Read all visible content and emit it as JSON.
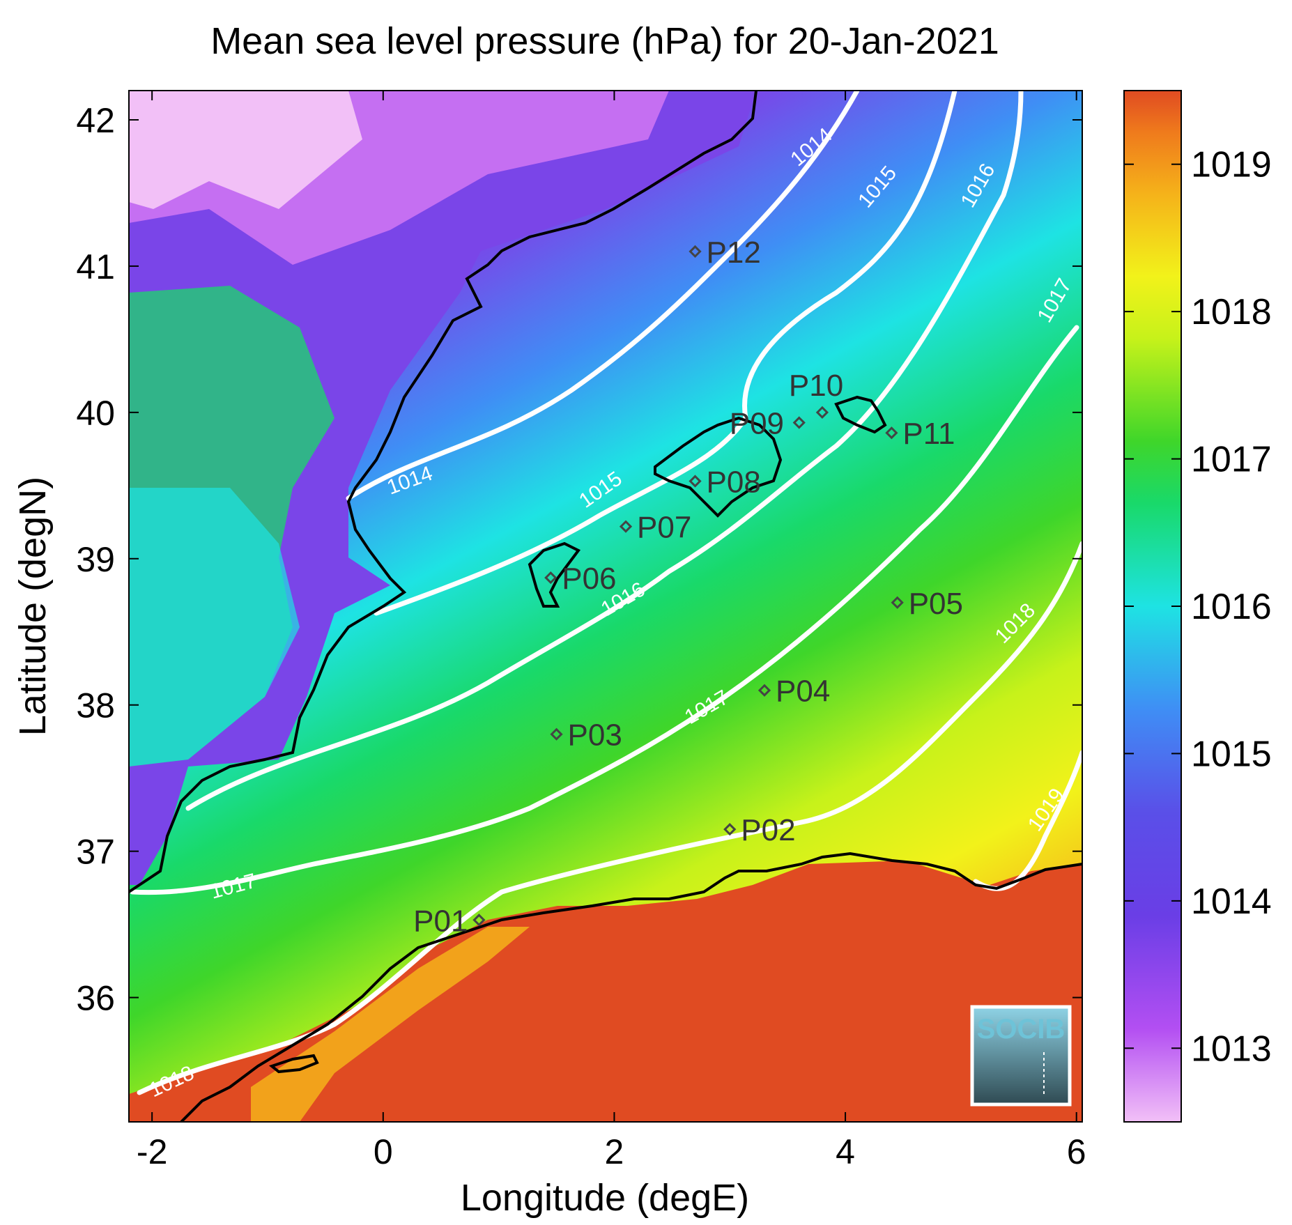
{
  "title": "Mean sea level pressure (hPa) for 20-Jan-2021",
  "xlabel": "Longitude (degE)",
  "ylabel": "Latitude (degN)",
  "x_ticks": [
    "-2",
    "0",
    "2",
    "4",
    "6"
  ],
  "y_ticks": [
    "42",
    "41",
    "40",
    "39",
    "38",
    "37",
    "36"
  ],
  "colorbar": {
    "ticks": [
      "1019",
      "1018",
      "1017",
      "1016",
      "1015",
      "1014",
      "1013"
    ],
    "range": [
      1012.5,
      1019.5
    ],
    "colors": [
      "#f2c0f7",
      "#b34ff2",
      "#6a3ee6",
      "#3f8ef5",
      "#1ee3e3",
      "#19d96a",
      "#3fd62a",
      "#c7f21a",
      "#f2f21a",
      "#f5b21a",
      "#ef7a1c",
      "#e04b22"
    ]
  },
  "contour_labels": [
    "1014",
    "1014",
    "1015",
    "1015",
    "1016",
    "1016",
    "1017",
    "1017",
    "1017",
    "1018",
    "1018",
    "1019"
  ],
  "stations": [
    {
      "id": "P01",
      "lon": 0.83,
      "lat": 36.53
    },
    {
      "id": "P02",
      "lon": 3.0,
      "lat": 37.15
    },
    {
      "id": "P03",
      "lon": 1.5,
      "lat": 37.8
    },
    {
      "id": "P04",
      "lon": 3.3,
      "lat": 38.1
    },
    {
      "id": "P05",
      "lon": 4.45,
      "lat": 38.7
    },
    {
      "id": "P06",
      "lon": 1.45,
      "lat": 38.87
    },
    {
      "id": "P07",
      "lon": 2.1,
      "lat": 39.22
    },
    {
      "id": "P08",
      "lon": 2.7,
      "lat": 39.53
    },
    {
      "id": "P09",
      "lon": 3.6,
      "lat": 39.93
    },
    {
      "id": "P10",
      "lon": 3.8,
      "lat": 40.0
    },
    {
      "id": "P11",
      "lon": 4.4,
      "lat": 39.86
    },
    {
      "id": "P12",
      "lon": 2.7,
      "lat": 41.1
    }
  ],
  "logo": "SOCIB"
}
